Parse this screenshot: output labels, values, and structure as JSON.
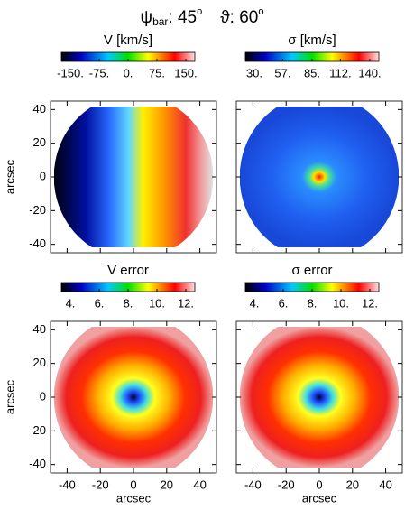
{
  "title": {
    "symbol1": "ψ",
    "sub1": "bar",
    "text1": ": 45",
    "sup1": "o",
    "text2": "ϑ: 60",
    "sup2": "o"
  },
  "chart_data": [
    {
      "type": "map",
      "colorbar_label": "V [km/s]",
      "clim": [
        -150,
        150
      ],
      "cticks": [
        {
          "value": -150,
          "label": "-150."
        },
        {
          "value": -75,
          "label": "-75."
        },
        {
          "value": 0,
          "label": "0."
        },
        {
          "value": 75,
          "label": "75."
        },
        {
          "value": 150,
          "label": "150."
        }
      ],
      "xlim": [
        -50,
        50
      ],
      "ylim": [
        -45,
        45
      ],
      "xticks": [
        -40,
        -20,
        0,
        20,
        40
      ],
      "yticks": [
        -40,
        -20,
        0,
        20,
        40
      ],
      "ylabel": "arcsec"
    },
    {
      "type": "map",
      "colorbar_label": "σ [km/s]",
      "clim": [
        30,
        140
      ],
      "cticks": [
        {
          "value": 30,
          "label": "30."
        },
        {
          "value": 57,
          "label": "57."
        },
        {
          "value": 85,
          "label": "85."
        },
        {
          "value": 112,
          "label": "112."
        },
        {
          "value": 140,
          "label": "140."
        }
      ],
      "xlim": [
        -50,
        50
      ],
      "ylim": [
        -45,
        45
      ],
      "xticks": [
        -40,
        -20,
        0,
        20,
        40
      ],
      "yticks": [
        -40,
        -20,
        0,
        20,
        40
      ]
    },
    {
      "type": "map",
      "colorbar_label": "V error",
      "clim": [
        4,
        12
      ],
      "cticks": [
        {
          "value": 4,
          "label": "4."
        },
        {
          "value": 6,
          "label": "6."
        },
        {
          "value": 8,
          "label": "8."
        },
        {
          "value": 10,
          "label": "10."
        },
        {
          "value": 12,
          "label": "12."
        }
      ],
      "xlim": [
        -50,
        50
      ],
      "ylim": [
        -45,
        45
      ],
      "xticks": [
        -40,
        -20,
        0,
        20,
        40
      ],
      "yticks": [
        -40,
        -20,
        0,
        20,
        40
      ],
      "xlabel": "arcsec",
      "ylabel": "arcsec"
    },
    {
      "type": "map",
      "colorbar_label": "σ error",
      "clim": [
        4,
        12
      ],
      "cticks": [
        {
          "value": 4,
          "label": "4."
        },
        {
          "value": 6,
          "label": "6."
        },
        {
          "value": 8,
          "label": "8."
        },
        {
          "value": 10,
          "label": "10."
        },
        {
          "value": 12,
          "label": "12."
        }
      ],
      "xlim": [
        -50,
        50
      ],
      "ylim": [
        -45,
        45
      ],
      "xticks": [
        -40,
        -20,
        0,
        20,
        40
      ],
      "yticks": [
        -40,
        -20,
        0,
        20,
        40
      ],
      "xlabel": "arcsec"
    }
  ]
}
